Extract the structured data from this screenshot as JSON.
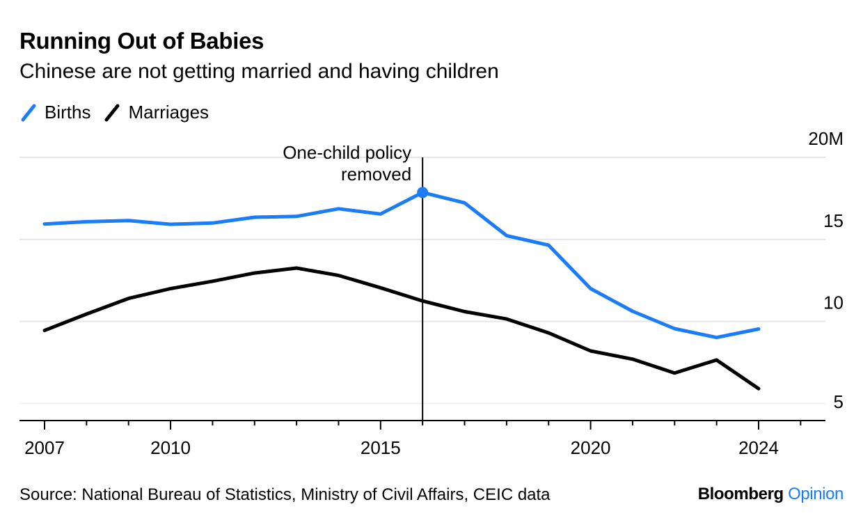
{
  "header": {
    "title": "Running Out of Babies",
    "subtitle": "Chinese are not getting married and having children"
  },
  "legend": {
    "items": [
      {
        "label": "Births",
        "color": "#1a7cf6"
      },
      {
        "label": "Marriages",
        "color": "#000000"
      }
    ]
  },
  "footer": {
    "source": "Source: National Bureau of Statistics, Ministry of Civil Affairs, CEIC data",
    "brand_primary": "Bloomberg",
    "brand_secondary": "Opinion",
    "brand_secondary_color": "#1a7cf6"
  },
  "chart_data": {
    "type": "line",
    "title": "Running Out of Babies",
    "subtitle": "Chinese are not getting married and having children",
    "xlabel": "",
    "ylabel": "",
    "y_unit": "M",
    "ylim": [
      4,
      20
    ],
    "xlim": [
      2007,
      2025.5
    ],
    "yticks": [
      {
        "value": 20,
        "label": "20M"
      },
      {
        "value": 15,
        "label": "15"
      },
      {
        "value": 10,
        "label": "10"
      },
      {
        "value": 5,
        "label": "5"
      }
    ],
    "xticks": [
      {
        "value": 2007,
        "label": "2007"
      },
      {
        "value": 2010,
        "label": "2010"
      },
      {
        "value": 2015,
        "label": "2015"
      },
      {
        "value": 2020,
        "label": "2020"
      },
      {
        "value": 2024,
        "label": "2024"
      }
    ],
    "x": [
      2007,
      2008,
      2009,
      2010,
      2011,
      2012,
      2013,
      2014,
      2015,
      2016,
      2017,
      2018,
      2019,
      2020,
      2021,
      2022,
      2023,
      2024
    ],
    "series": [
      {
        "name": "Births",
        "color": "#1a7cf6",
        "values": [
          15.94,
          16.08,
          16.15,
          15.92,
          16.0,
          16.35,
          16.4,
          16.87,
          16.55,
          17.86,
          17.23,
          15.23,
          14.65,
          12.0,
          10.62,
          9.56,
          9.02,
          9.54
        ]
      },
      {
        "name": "Marriages",
        "color": "#000000",
        "values": [
          9.45,
          10.45,
          11.4,
          12.0,
          12.45,
          12.95,
          13.25,
          12.8,
          12.05,
          11.25,
          10.6,
          10.15,
          9.3,
          8.2,
          7.7,
          6.85,
          7.65,
          5.9
        ]
      }
    ],
    "annotations": [
      {
        "x": 2016,
        "series": "Births",
        "label_lines": [
          "One-child policy",
          "removed"
        ]
      }
    ],
    "grid": true,
    "legend_position": "top-left"
  }
}
